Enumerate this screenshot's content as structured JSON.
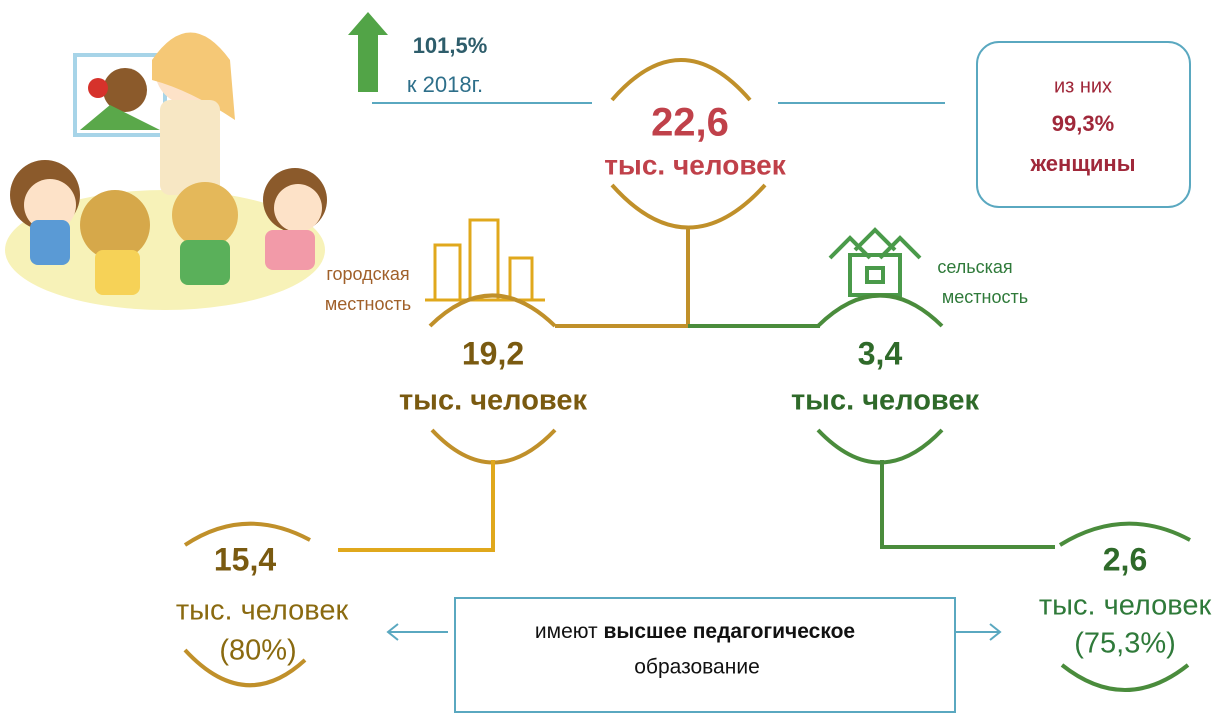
{
  "growth": {
    "percent": "101,5%",
    "label": "к  2018г."
  },
  "total": {
    "value": "22,6",
    "unit": "тыс. человек"
  },
  "women": {
    "line1": "из них",
    "percent": "99,3%",
    "line3": "женщины"
  },
  "urban": {
    "label1": "городская",
    "label2": "местность",
    "value": "19,2",
    "unit": "тыс. человек"
  },
  "rural": {
    "label1": "сельская",
    "label2": "местность",
    "value": "3,4",
    "unit": "тыс. человек"
  },
  "urban_higher": {
    "value": "15,4",
    "unit": "тыс. человек",
    "percent": "(80%)"
  },
  "rural_higher": {
    "value": "2,6",
    "unit": "тыс. человек",
    "percent": "(75,3%)"
  },
  "note": {
    "pre": "имеют",
    "bold": "высшее педагогическое",
    "post": "образование"
  }
}
